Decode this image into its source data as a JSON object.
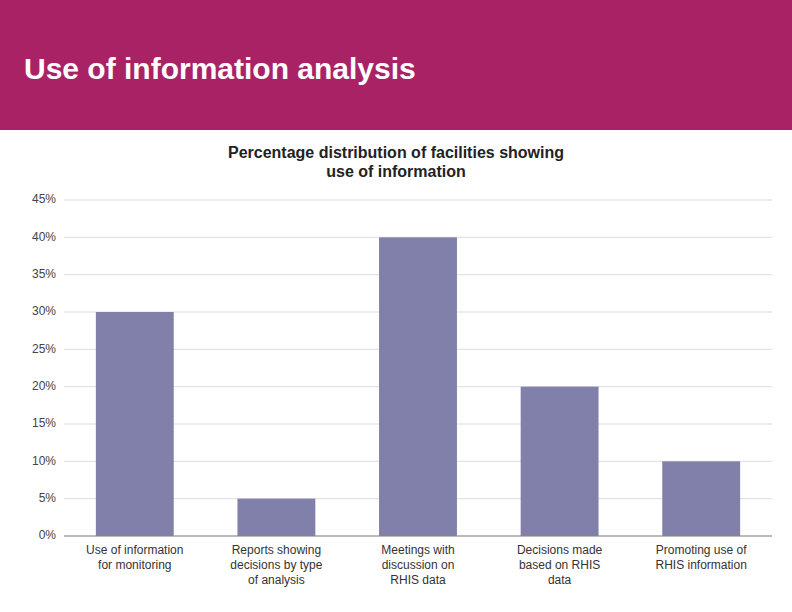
{
  "chart_data": {
    "type": "bar",
    "title": "Use of information analysis",
    "subtitle": "Percentage distribution of facilities showing\nuse of information",
    "categories": [
      "Use of information\nfor monitoring",
      "Reports showing\ndecisions by type\nof analysis",
      "Meetings with\ndiscussion on\nRHIS data",
      "Decisions made\nbased on RHIS\ndata",
      "Promoting use of\nRHIS information"
    ],
    "values": [
      30,
      5,
      40,
      20,
      10
    ],
    "color": "#8080aa",
    "ylim": [
      0,
      45
    ],
    "yticks": [
      {
        "value": 0,
        "label": "0%"
      },
      {
        "value": 5,
        "label": "5%"
      },
      {
        "value": 10,
        "label": "10%"
      },
      {
        "value": 15,
        "label": "15%"
      },
      {
        "value": 20,
        "label": "20%"
      },
      {
        "value": 25,
        "label": "25%"
      },
      {
        "value": 30,
        "label": "30%"
      },
      {
        "value": 35,
        "label": "35%"
      },
      {
        "value": 40,
        "label": "40%"
      },
      {
        "value": 45,
        "label": "45%"
      }
    ],
    "grid": true
  }
}
